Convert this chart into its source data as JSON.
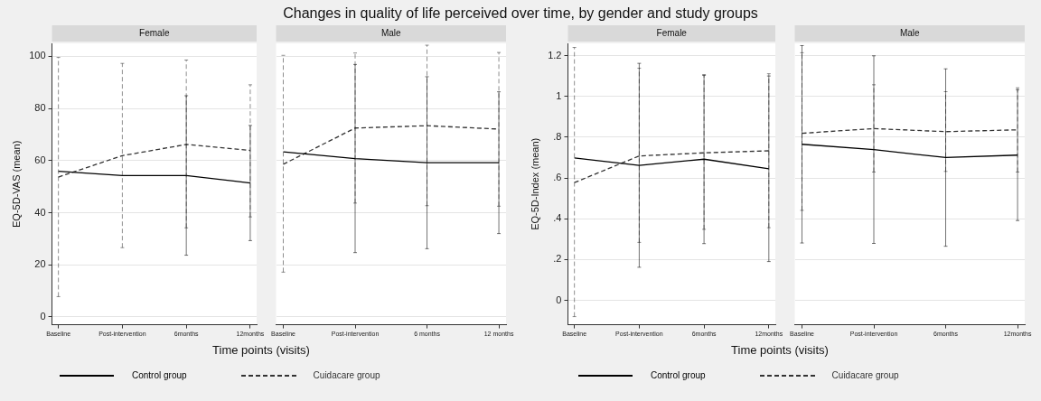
{
  "chart_data": [
    {
      "type": "line",
      "title": "Female",
      "annotations": [
        "Changes in quality of life perceived over time, by gender and study groups"
      ],
      "xlabel": "Time points (visits)",
      "ylabel": "EQ-5D-VAS (mean)",
      "categories": [
        "Baseline",
        "Post-intervention",
        "6months",
        "12months"
      ],
      "ylim": [
        -3,
        105
      ],
      "yticks": [
        0,
        20,
        40,
        60,
        80,
        100
      ],
      "grid": "y",
      "marker": "none",
      "legend": "bottom",
      "series": [
        {
          "name": "Control group",
          "color": "#000000",
          "line_style": "solid",
          "values": [
            55.9,
            54.3,
            54.3,
            51.4
          ],
          "errors": [
            null,
            null,
            30.6,
            22.1
          ]
        },
        {
          "name": "Cuidacare group",
          "color": "#333333",
          "line_style": "dashed",
          "values": [
            53.7,
            61.9,
            66.2,
            63.9
          ],
          "errors": [
            [
              7.8,
              99.6
            ],
            [
              26.6,
              97.3
            ],
            [
              34.2,
              98.6
            ],
            [
              38.4,
              89.1
            ]
          ]
        }
      ]
    },
    {
      "type": "line",
      "title": "Male",
      "categories": [
        "Baseline",
        "Post-intervention",
        "6 months",
        "12 months"
      ],
      "ylim": [
        -3,
        105
      ],
      "yticks": [
        0,
        20,
        40,
        60,
        80,
        100
      ],
      "grid": "y",
      "marker": "none",
      "tick_labels": "x",
      "series": [
        {
          "color": "#000000",
          "line_style": "solid",
          "values": [
            63.4,
            60.8,
            59.2,
            59.2
          ],
          "errors": [
            null,
            36.1,
            33.0,
            27.2
          ]
        },
        {
          "color": "#333333",
          "line_style": "dashed",
          "values": [
            58.6,
            72.5,
            73.4,
            72.1
          ],
          "errors": [
            [
              17.2,
              100.4
            ],
            [
              43.7,
              101.3
            ],
            [
              42.7,
              104.3
            ],
            [
              42.5,
              101.5
            ]
          ]
        }
      ]
    },
    {
      "type": "line",
      "title": "Female",
      "xlabel": "Time points (visits)",
      "ylabel": "EQ-5D-Index (mean)",
      "categories": [
        "Baseline",
        "Post-intervention",
        "6months",
        "12months"
      ],
      "ylim": [
        -0.12,
        1.26
      ],
      "yticks": [
        0,
        {
          "value": 0.2,
          "label": ".2"
        },
        {
          "value": 0.4,
          "label": ".4"
        },
        {
          "value": 0.6,
          "label": ".6"
        },
        {
          "value": 0.8,
          "label": ".8"
        },
        1,
        1.2
      ],
      "grid": "y",
      "marker": "none",
      "legend": "bottom",
      "series": [
        {
          "name": "Control group",
          "color": "#000000",
          "line_style": "solid",
          "values": [
            0.698,
            0.662,
            0.692,
            0.645
          ],
          "errors": [
            null,
            0.5,
            0.414,
            0.455
          ]
        },
        {
          "name": "Cuidacare group",
          "color": "#333333",
          "line_style": "dashed",
          "values": [
            0.577,
            0.708,
            0.723,
            0.733
          ],
          "errors": [
            [
              -0.08,
              1.24
            ],
            [
              0.284,
              1.138
            ],
            [
              0.348,
              1.103
            ],
            [
              0.356,
              1.111
            ]
          ]
        }
      ]
    },
    {
      "type": "line",
      "title": "Male",
      "categories": [
        "Baseline",
        "Post-intervention",
        "6months",
        "12months"
      ],
      "ylim": [
        -0.12,
        1.26
      ],
      "yticks": [
        0,
        0.2,
        0.4,
        0.6,
        0.8,
        1,
        1.2
      ],
      "grid": "y",
      "marker": "none",
      "tick_labels": "x",
      "series": [
        {
          "color": "#000000",
          "line_style": "solid",
          "values": [
            0.765,
            0.739,
            0.7,
            0.712
          ],
          "errors": [
            0.484,
            0.46,
            0.435,
            0.321
          ]
        },
        {
          "color": "#333333",
          "line_style": "dashed",
          "values": [
            0.819,
            0.842,
            0.827,
            0.836
          ],
          "errors": [
            [
              0.441,
              1.214
            ],
            [
              0.629,
              1.057
            ],
            [
              0.632,
              1.023
            ],
            [
              0.629,
              1.042
            ]
          ]
        }
      ]
    }
  ]
}
